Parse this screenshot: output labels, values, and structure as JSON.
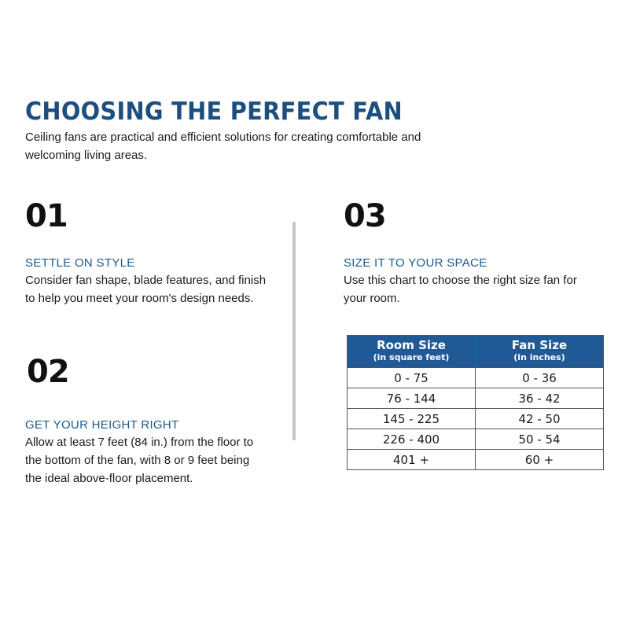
{
  "title": "CHOOSING THE PERFECT FAN",
  "intro": "Ceiling fans are practical and efficient solutions for creating comfortable and welcoming living areas.",
  "steps": [
    {
      "number": "01",
      "heading": "SETTLE ON STYLE",
      "body": "Consider fan shape, blade features, and finish to help you meet your room's design needs."
    },
    {
      "number": "02",
      "heading": "GET YOUR HEIGHT RIGHT",
      "body": "Allow at least 7 feet (84 in.) from the floor to the bottom of the fan, with 8 or 9 feet being the ideal above-floor placement."
    },
    {
      "number": "03",
      "heading": "SIZE IT TO YOUR SPACE",
      "body": "Use this chart to choose the right size fan for your room."
    }
  ],
  "size_table": {
    "headers": [
      {
        "main": "Room Size",
        "sub": "(in square feet)"
      },
      {
        "main": "Fan Size",
        "sub": "(in inches)"
      }
    ],
    "rows": [
      [
        "0 - 75",
        "0 - 36"
      ],
      [
        "76 - 144",
        "36 - 42"
      ],
      [
        "145 - 225",
        "42 - 50"
      ],
      [
        "226 - 400",
        "50 - 54"
      ],
      [
        "401 +",
        "60 +"
      ]
    ]
  },
  "colors": {
    "accent": "#1c4f80",
    "table_header": "#1f5a96",
    "divider": "#c4c7c9"
  }
}
